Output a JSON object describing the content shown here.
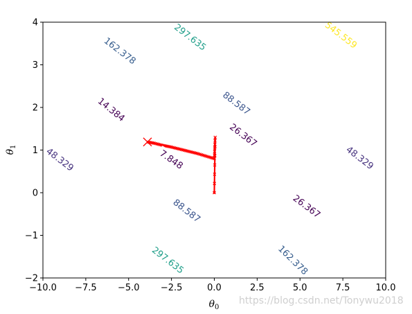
{
  "chart_data": {
    "type": "contour",
    "xlabel": "θ",
    "xlabel_sub": "0",
    "ylabel": "θ",
    "ylabel_sub": "1",
    "xlim": [
      -10,
      10
    ],
    "ylim": [
      -2,
      4
    ],
    "x_ticks": [
      -10,
      -7.5,
      -5,
      -2.5,
      0,
      2.5,
      5,
      7.5,
      10
    ],
    "x_tick_labels": [
      "−10.0",
      "−7.5",
      "−5.0",
      "−2.5",
      "0.0",
      "2.5",
      "5.0",
      "7.5",
      "10.0"
    ],
    "y_ticks": [
      -2,
      -1,
      0,
      1,
      2,
      3,
      4
    ],
    "y_tick_labels": [
      "−2",
      "−1",
      "0",
      "1",
      "2",
      "3",
      "4"
    ],
    "contour_center": [
      -4.0,
      1.19
    ],
    "levels": [
      {
        "value": 7.848,
        "label": "7.848",
        "color": "#440154",
        "label_positions": [
          [
            -2.5,
            0.78
          ]
        ]
      },
      {
        "value": 14.384,
        "label": "14.384",
        "color": "#440154",
        "label_positions": [
          [
            -6.0,
            1.95
          ]
        ]
      },
      {
        "value": 26.367,
        "label": "26.367",
        "color": "#440154",
        "label_positions": [
          [
            1.7,
            1.35
          ],
          [
            5.4,
            -0.32
          ]
        ]
      },
      {
        "value": 48.329,
        "label": "48.329",
        "color": "#46327e",
        "label_positions": [
          [
            8.5,
            0.82
          ],
          [
            -9.0,
            0.78
          ]
        ]
      },
      {
        "value": 88.587,
        "label": "88.587",
        "color": "#3a548c",
        "label_positions": [
          [
            1.3,
            2.1
          ],
          [
            -1.6,
            -0.42
          ]
        ]
      },
      {
        "value": 162.378,
        "label": "162.378",
        "color": "#365d8d",
        "label_positions": [
          [
            -5.5,
            3.33
          ],
          [
            4.6,
            -1.58
          ]
        ]
      },
      {
        "value": 297.635,
        "label": "297.635",
        "color": "#1f9e89",
        "label_positions": [
          [
            -1.4,
            3.65
          ],
          [
            -2.7,
            -1.58
          ]
        ]
      },
      {
        "value": 545.559,
        "label": "545.559",
        "color": "#fde725",
        "label_positions": [
          [
            7.4,
            3.7
          ]
        ]
      }
    ],
    "path": {
      "color": "#ff0000",
      "start": [
        0,
        0
      ],
      "end": [
        -3.9,
        1.19
      ],
      "end_marker": "x",
      "points": [
        [
          0,
          0
        ],
        [
          0.05,
          1.3
        ],
        [
          0.0,
          0.8
        ],
        [
          -0.5,
          0.86
        ],
        [
          -1.0,
          0.92
        ],
        [
          -1.5,
          0.97
        ],
        [
          -2.0,
          1.02
        ],
        [
          -2.5,
          1.07
        ],
        [
          -3.0,
          1.11
        ],
        [
          -3.5,
          1.16
        ],
        [
          -3.9,
          1.19
        ]
      ]
    }
  },
  "watermark": "https://blog.csdn.net/Tonywu2018"
}
